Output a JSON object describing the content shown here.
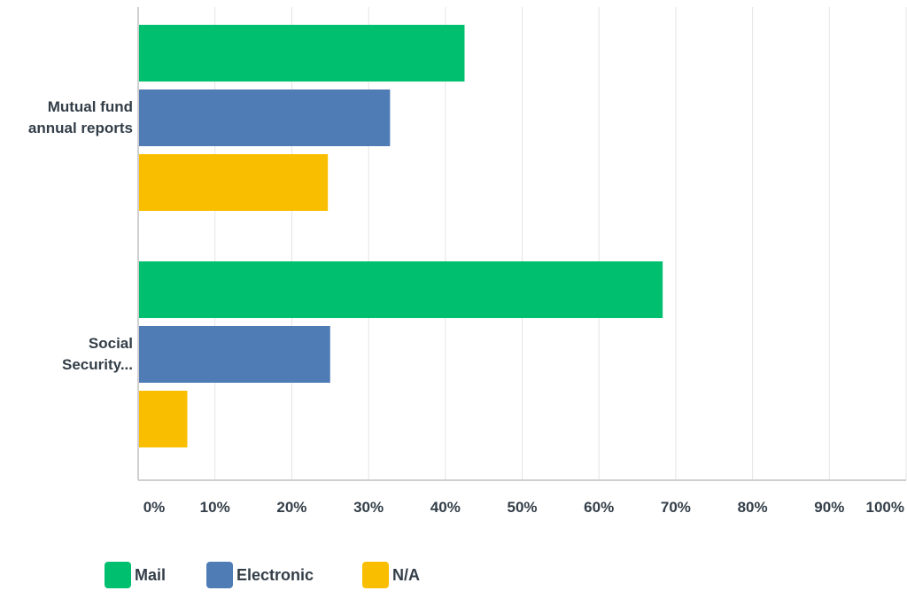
{
  "chart_data": {
    "type": "bar",
    "orientation": "horizontal",
    "categories": [
      "Mutual fund annual reports",
      "Social Security..."
    ],
    "category_label_lines": [
      [
        "Mutual fund",
        "annual reports"
      ],
      [
        "Social",
        "Security..."
      ]
    ],
    "series": [
      {
        "name": "Mail",
        "color": "#00bf6f",
        "values": [
          42.5,
          68.3
        ]
      },
      {
        "name": "Electronic",
        "color": "#507cb6",
        "values": [
          32.8,
          25.0
        ]
      },
      {
        "name": "N/A",
        "color": "#f9be00",
        "values": [
          24.7,
          6.4
        ]
      }
    ],
    "xlim": [
      0,
      100
    ],
    "ticks": [
      "0%",
      "10%",
      "20%",
      "30%",
      "40%",
      "50%",
      "60%",
      "70%",
      "80%",
      "90%",
      "100%"
    ],
    "grid": true,
    "legend_position": "bottom"
  }
}
